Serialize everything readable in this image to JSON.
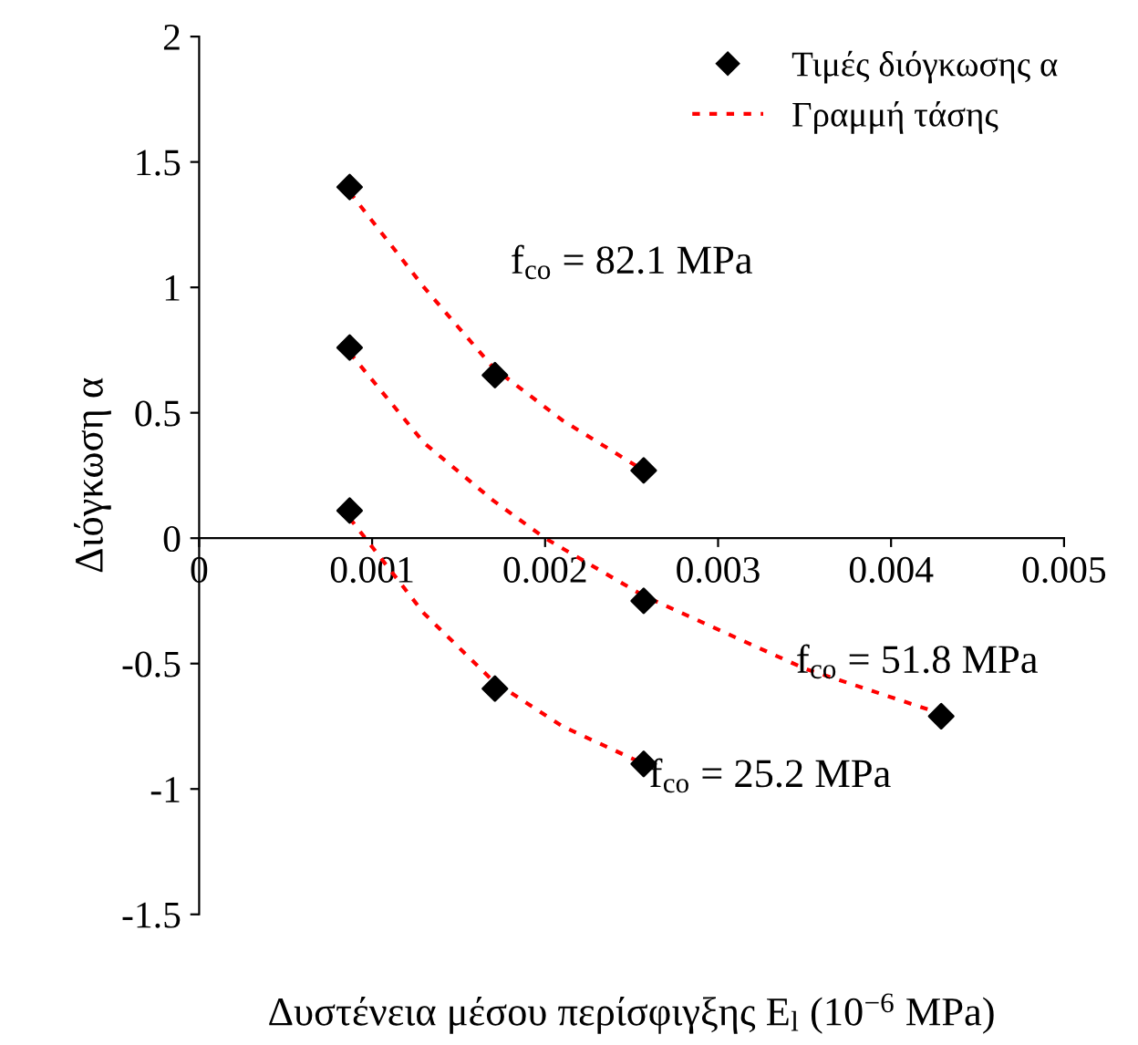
{
  "chart_data": {
    "type": "scatter",
    "xlabel": "Δυστένεια μέσου περίσφιγξης E$_{l}$ (10$^{−6}$ MPa)",
    "ylabel": "Διόγκωση α",
    "series": [
      {
        "name": "Τιμές διόγκωσης α",
        "color": "#000000",
        "marker": "diamond",
        "x": [
          0.00087,
          0.00171,
          0.00257,
          0.00087,
          0.00257,
          0.00429,
          0.00087,
          0.00171,
          0.00257
        ],
        "values": [
          1.4,
          0.65,
          0.27,
          0.76,
          -0.25,
          -0.71,
          0.11,
          -0.6,
          -0.9
        ]
      },
      {
        "type": "line",
        "name": "Γραμμή τάσης",
        "color": "#ff0000",
        "line_style": "dotted",
        "x": [
          0.00087,
          0.0013,
          0.0017,
          0.0021,
          0.00257
        ],
        "values": [
          1.38,
          1.0,
          0.68,
          0.47,
          0.27
        ]
      },
      {
        "type": "line",
        "color": "#ff0000",
        "line_style": "dotted",
        "x": [
          0.00087,
          0.0013,
          0.0017,
          0.002,
          0.00257,
          0.0035,
          0.00429
        ],
        "values": [
          0.74,
          0.38,
          0.15,
          0.0,
          -0.23,
          -0.52,
          -0.7
        ]
      },
      {
        "type": "line",
        "color": "#ff0000",
        "line_style": "dotted",
        "x": [
          0.00087,
          0.0013,
          0.0017,
          0.0021,
          0.00257
        ],
        "values": [
          0.08,
          -0.3,
          -0.57,
          -0.75,
          -0.9
        ]
      }
    ],
    "xlim": [
      0,
      0.005
    ],
    "ylim": [
      -1.5,
      2
    ],
    "xticks": [
      0,
      0.001,
      0.002,
      0.003,
      0.004,
      0.005
    ],
    "yticks": [
      -1.5,
      -1,
      -0.5,
      0,
      0.5,
      1,
      1.5,
      2
    ],
    "grid": false,
    "legend": "top right",
    "annotations": [
      "f$_{co}$ = 82.1 MPa",
      "f$_{co}$ = 51.8 MPa",
      "f$_{co}$ = 25.2 MPa"
    ]
  }
}
